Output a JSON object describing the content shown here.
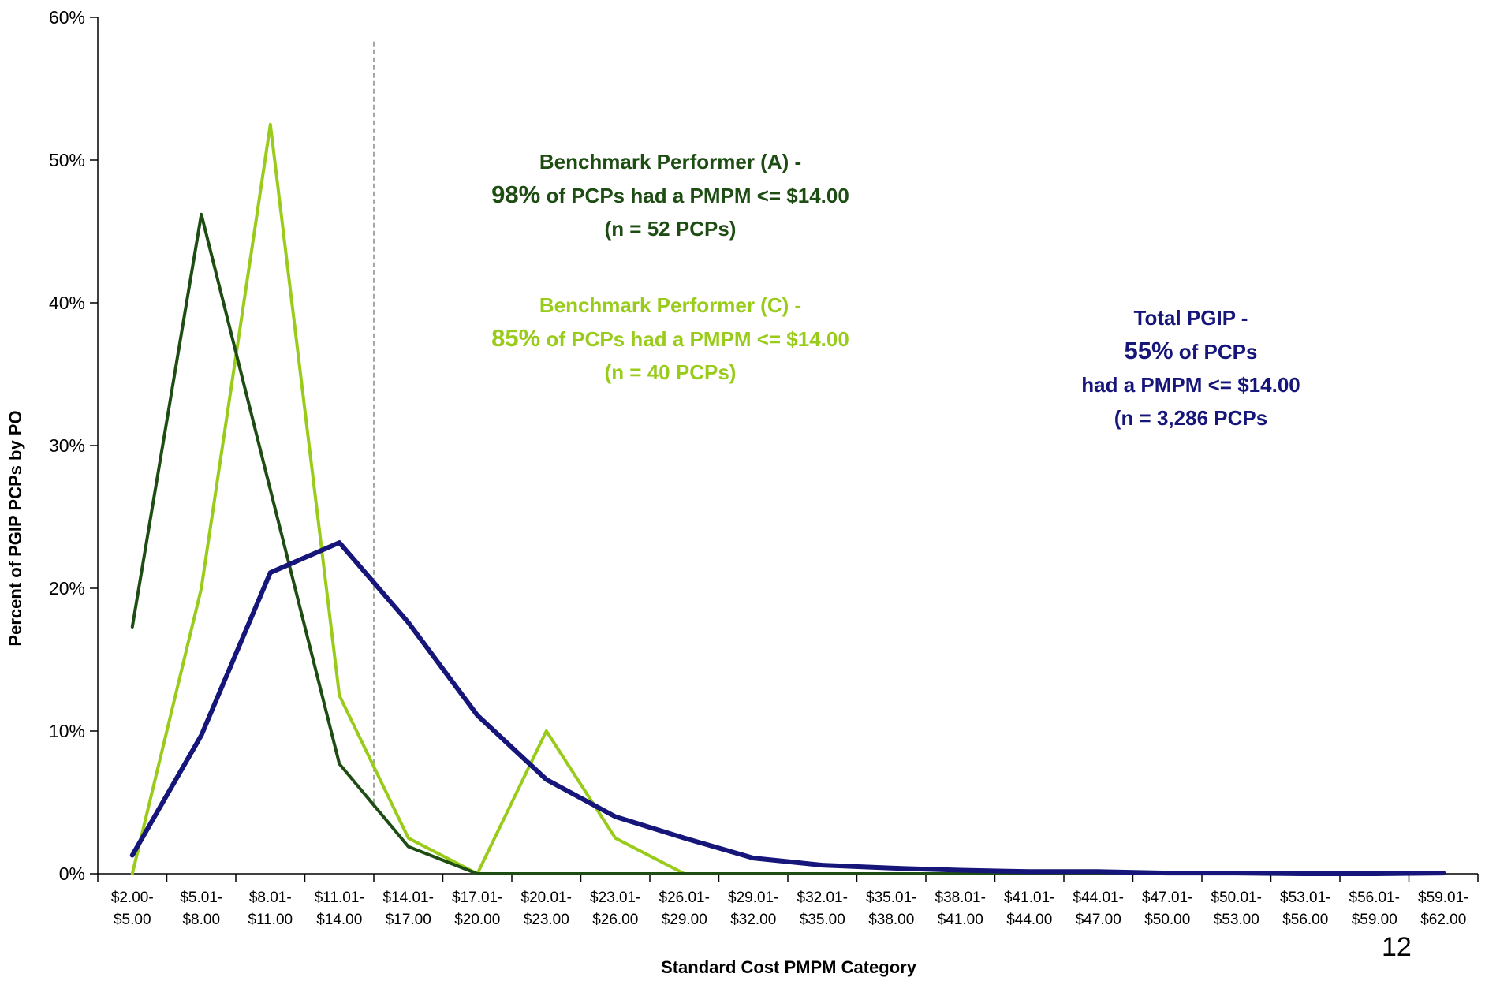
{
  "chart_data": {
    "type": "line",
    "title": "",
    "xlabel": "Standard Cost PMPM Category",
    "ylabel": "Percent of PGIP PCPs by PO",
    "ylim": [
      0,
      60
    ],
    "y_ticks": [
      "0%",
      "10%",
      "20%",
      "30%",
      "40%",
      "50%",
      "60%"
    ],
    "categories": [
      [
        "$2.00-",
        "$5.00"
      ],
      [
        "$5.01-",
        "$8.00"
      ],
      [
        "$8.01-",
        "$11.00"
      ],
      [
        "$11.01-",
        "$14.00"
      ],
      [
        "$14.01-",
        "$17.00"
      ],
      [
        "$17.01-",
        "$20.00"
      ],
      [
        "$20.01-",
        "$23.00"
      ],
      [
        "$23.01-",
        "$26.00"
      ],
      [
        "$26.01-",
        "$29.00"
      ],
      [
        "$29.01-",
        "$32.00"
      ],
      [
        "$32.01-",
        "$35.00"
      ],
      [
        "$35.01-",
        "$38.00"
      ],
      [
        "$38.01-",
        "$41.00"
      ],
      [
        "$41.01-",
        "$44.00"
      ],
      [
        "$44.01-",
        "$47.00"
      ],
      [
        "$47.01-",
        "$50.00"
      ],
      [
        "$50.01-",
        "$53.00"
      ],
      [
        "$53.01-",
        "$56.00"
      ],
      [
        "$56.01-",
        "$59.00"
      ],
      [
        "$59.01-",
        "$62.00"
      ]
    ],
    "reference_line": {
      "between_categories": [
        3,
        4
      ],
      "style": "dashed",
      "color": "#888888"
    },
    "series": [
      {
        "key": "A",
        "color": "#1e4d14",
        "width": 4,
        "values": [
          17.3,
          46.2,
          26.9,
          7.7,
          1.9,
          0,
          0,
          0,
          0,
          0,
          0,
          0,
          0,
          0,
          0,
          0,
          0,
          0,
          0,
          0
        ]
      },
      {
        "key": "C",
        "color": "#99cc1a",
        "width": 4,
        "values": [
          0,
          20.0,
          52.5,
          12.5,
          2.5,
          0,
          10.0,
          2.5,
          0,
          0,
          0,
          0,
          0,
          0,
          0,
          0,
          0,
          0,
          0,
          0
        ]
      },
      {
        "key": "Total",
        "color": "#15157a",
        "width": 6,
        "values": [
          1.3,
          9.7,
          21.1,
          23.2,
          17.6,
          11.1,
          6.6,
          4.0,
          2.5,
          1.1,
          0.6,
          0.4,
          0.25,
          0.15,
          0.15,
          0.05,
          0.05,
          0.0,
          0.0,
          0.05
        ]
      }
    ]
  },
  "annotations": {
    "a": {
      "line1": "Benchmark Performer (A) -",
      "pct": "98%",
      "line2": " of PCPs had a PMPM <= $14.00",
      "line3": "(n = 52 PCPs)"
    },
    "c": {
      "line1": "Benchmark Performer (C) -",
      "pct": "85%",
      "line2": " of PCPs had a PMPM  <= $14.00",
      "line3": "(n = 40 PCPs)"
    },
    "t": {
      "line1": "Total PGIP -",
      "pct": "55%",
      "line2": " of PCPs",
      "line3": "had a PMPM <= $14.00",
      "line4": "(n = 3,286 PCPs"
    }
  },
  "page_number": "12"
}
